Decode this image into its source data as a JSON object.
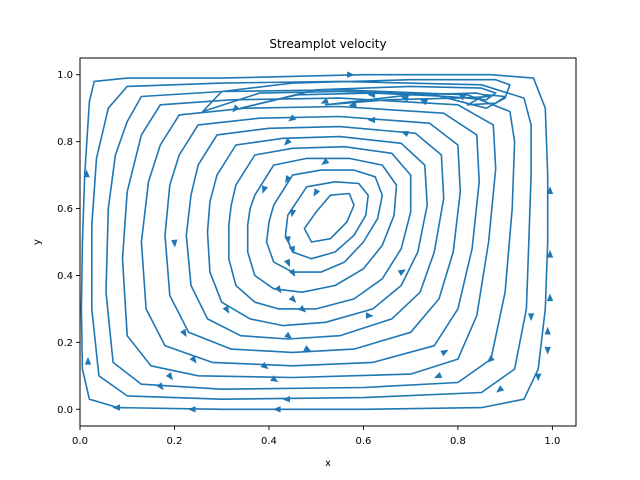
{
  "chart_data": {
    "type": "streamplot",
    "title": "Streamplot velocity",
    "xlabel": "x",
    "ylabel": "y",
    "xlim": [
      0.0,
      1.05
    ],
    "ylim": [
      -0.05,
      1.05
    ],
    "xticks": [
      0.0,
      0.2,
      0.4,
      0.6,
      0.8,
      1.0
    ],
    "yticks": [
      0.0,
      0.2,
      0.4,
      0.6,
      0.8,
      1.0
    ],
    "xtick_labels": [
      "0.0",
      "0.2",
      "0.4",
      "0.6",
      "0.8",
      "1.0"
    ],
    "ytick_labels": [
      "0.0",
      "0.2",
      "0.4",
      "0.6",
      "0.8",
      "1.0"
    ],
    "grid": false,
    "legend": "none",
    "color": "#1f77b4",
    "flow": "clockwise recirculating cavity vortex, center near (0.62, 0.55); rightward flow along top lid, leftward flow near bottom, small secondary vortex near (0.85, 0.92)",
    "streamlines": [
      [
        [
          0.02,
          0.92
        ],
        [
          0.03,
          0.98
        ],
        [
          0.1,
          0.99
        ],
        [
          0.3,
          0.99
        ],
        [
          0.6,
          1.0
        ],
        [
          0.87,
          1.0
        ],
        [
          0.96,
          0.99
        ],
        [
          0.985,
          0.9
        ],
        [
          0.99,
          0.7
        ],
        [
          0.99,
          0.5
        ],
        [
          0.985,
          0.3
        ],
        [
          0.97,
          0.12
        ],
        [
          0.94,
          0.03
        ],
        [
          0.85,
          0.005
        ],
        [
          0.6,
          0.0
        ],
        [
          0.3,
          0.0
        ],
        [
          0.08,
          0.005
        ],
        [
          0.02,
          0.03
        ],
        [
          0.005,
          0.12
        ],
        [
          0.003,
          0.3
        ],
        [
          0.005,
          0.5
        ],
        [
          0.01,
          0.7
        ],
        [
          0.02,
          0.92
        ]
      ],
      [
        [
          0.06,
          0.9
        ],
        [
          0.1,
          0.965
        ],
        [
          0.3,
          0.975
        ],
        [
          0.55,
          0.98
        ],
        [
          0.85,
          0.97
        ],
        [
          0.94,
          0.93
        ],
        [
          0.955,
          0.85
        ],
        [
          0.955,
          0.7
        ],
        [
          0.95,
          0.5
        ],
        [
          0.945,
          0.3
        ],
        [
          0.92,
          0.12
        ],
        [
          0.85,
          0.05
        ],
        [
          0.6,
          0.035
        ],
        [
          0.3,
          0.03
        ],
        [
          0.1,
          0.04
        ],
        [
          0.04,
          0.1
        ],
        [
          0.025,
          0.3
        ],
        [
          0.025,
          0.55
        ],
        [
          0.035,
          0.75
        ],
        [
          0.06,
          0.9
        ]
      ],
      [
        [
          0.1,
          0.86
        ],
        [
          0.13,
          0.935
        ],
        [
          0.3,
          0.95
        ],
        [
          0.55,
          0.955
        ],
        [
          0.82,
          0.94
        ],
        [
          0.91,
          0.89
        ],
        [
          0.92,
          0.8
        ],
        [
          0.915,
          0.6
        ],
        [
          0.9,
          0.35
        ],
        [
          0.87,
          0.15
        ],
        [
          0.8,
          0.08
        ],
        [
          0.6,
          0.065
        ],
        [
          0.3,
          0.06
        ],
        [
          0.13,
          0.075
        ],
        [
          0.07,
          0.14
        ],
        [
          0.055,
          0.35
        ],
        [
          0.06,
          0.6
        ],
        [
          0.075,
          0.76
        ],
        [
          0.1,
          0.86
        ]
      ],
      [
        [
          0.13,
          0.82
        ],
        [
          0.17,
          0.91
        ],
        [
          0.32,
          0.925
        ],
        [
          0.55,
          0.93
        ],
        [
          0.8,
          0.91
        ],
        [
          0.875,
          0.85
        ],
        [
          0.88,
          0.72
        ],
        [
          0.865,
          0.5
        ],
        [
          0.84,
          0.28
        ],
        [
          0.8,
          0.15
        ],
        [
          0.7,
          0.105
        ],
        [
          0.45,
          0.095
        ],
        [
          0.25,
          0.1
        ],
        [
          0.15,
          0.13
        ],
        [
          0.1,
          0.22
        ],
        [
          0.09,
          0.45
        ],
        [
          0.1,
          0.65
        ],
        [
          0.13,
          0.82
        ]
      ],
      [
        [
          0.17,
          0.79
        ],
        [
          0.21,
          0.88
        ],
        [
          0.35,
          0.9
        ],
        [
          0.55,
          0.905
        ],
        [
          0.77,
          0.885
        ],
        [
          0.84,
          0.82
        ],
        [
          0.845,
          0.68
        ],
        [
          0.83,
          0.48
        ],
        [
          0.8,
          0.3
        ],
        [
          0.75,
          0.19
        ],
        [
          0.62,
          0.14
        ],
        [
          0.45,
          0.13
        ],
        [
          0.28,
          0.14
        ],
        [
          0.18,
          0.19
        ],
        [
          0.14,
          0.3
        ],
        [
          0.13,
          0.5
        ],
        [
          0.145,
          0.68
        ],
        [
          0.17,
          0.79
        ]
      ],
      [
        [
          0.21,
          0.76
        ],
        [
          0.25,
          0.85
        ],
        [
          0.38,
          0.87
        ],
        [
          0.55,
          0.875
        ],
        [
          0.74,
          0.855
        ],
        [
          0.8,
          0.79
        ],
        [
          0.805,
          0.65
        ],
        [
          0.79,
          0.47
        ],
        [
          0.76,
          0.33
        ],
        [
          0.7,
          0.23
        ],
        [
          0.58,
          0.18
        ],
        [
          0.45,
          0.17
        ],
        [
          0.32,
          0.18
        ],
        [
          0.23,
          0.23
        ],
        [
          0.19,
          0.34
        ],
        [
          0.18,
          0.52
        ],
        [
          0.19,
          0.67
        ],
        [
          0.21,
          0.76
        ]
      ],
      [
        [
          0.25,
          0.73
        ],
        [
          0.29,
          0.82
        ],
        [
          0.4,
          0.84
        ],
        [
          0.55,
          0.845
        ],
        [
          0.71,
          0.825
        ],
        [
          0.765,
          0.76
        ],
        [
          0.77,
          0.63
        ],
        [
          0.75,
          0.47
        ],
        [
          0.72,
          0.35
        ],
        [
          0.66,
          0.27
        ],
        [
          0.55,
          0.22
        ],
        [
          0.44,
          0.21
        ],
        [
          0.34,
          0.22
        ],
        [
          0.27,
          0.27
        ],
        [
          0.235,
          0.37
        ],
        [
          0.225,
          0.52
        ],
        [
          0.235,
          0.64
        ],
        [
          0.25,
          0.73
        ]
      ],
      [
        [
          0.29,
          0.7
        ],
        [
          0.33,
          0.79
        ],
        [
          0.43,
          0.81
        ],
        [
          0.55,
          0.815
        ],
        [
          0.68,
          0.795
        ],
        [
          0.73,
          0.73
        ],
        [
          0.735,
          0.61
        ],
        [
          0.715,
          0.47
        ],
        [
          0.68,
          0.37
        ],
        [
          0.62,
          0.3
        ],
        [
          0.52,
          0.26
        ],
        [
          0.43,
          0.25
        ],
        [
          0.36,
          0.27
        ],
        [
          0.3,
          0.32
        ],
        [
          0.275,
          0.41
        ],
        [
          0.27,
          0.53
        ],
        [
          0.275,
          0.62
        ],
        [
          0.29,
          0.7
        ]
      ],
      [
        [
          0.33,
          0.67
        ],
        [
          0.37,
          0.76
        ],
        [
          0.45,
          0.78
        ],
        [
          0.56,
          0.785
        ],
        [
          0.66,
          0.765
        ],
        [
          0.7,
          0.7
        ],
        [
          0.7,
          0.59
        ],
        [
          0.68,
          0.48
        ],
        [
          0.64,
          0.39
        ],
        [
          0.58,
          0.33
        ],
        [
          0.5,
          0.3
        ],
        [
          0.42,
          0.3
        ],
        [
          0.37,
          0.32
        ],
        [
          0.33,
          0.37
        ],
        [
          0.315,
          0.45
        ],
        [
          0.315,
          0.55
        ],
        [
          0.32,
          0.61
        ],
        [
          0.33,
          0.67
        ]
      ],
      [
        [
          0.37,
          0.64
        ],
        [
          0.41,
          0.73
        ],
        [
          0.48,
          0.75
        ],
        [
          0.57,
          0.75
        ],
        [
          0.64,
          0.73
        ],
        [
          0.67,
          0.67
        ],
        [
          0.665,
          0.58
        ],
        [
          0.64,
          0.49
        ],
        [
          0.6,
          0.42
        ],
        [
          0.54,
          0.37
        ],
        [
          0.47,
          0.35
        ],
        [
          0.41,
          0.36
        ],
        [
          0.37,
          0.4
        ],
        [
          0.355,
          0.47
        ],
        [
          0.355,
          0.55
        ],
        [
          0.36,
          0.6
        ],
        [
          0.37,
          0.64
        ]
      ],
      [
        [
          0.41,
          0.61
        ],
        [
          0.45,
          0.7
        ],
        [
          0.51,
          0.715
        ],
        [
          0.58,
          0.715
        ],
        [
          0.625,
          0.695
        ],
        [
          0.64,
          0.64
        ],
        [
          0.63,
          0.57
        ],
        [
          0.6,
          0.5
        ],
        [
          0.56,
          0.44
        ],
        [
          0.51,
          0.41
        ],
        [
          0.45,
          0.41
        ],
        [
          0.41,
          0.44
        ],
        [
          0.395,
          0.5
        ],
        [
          0.4,
          0.56
        ],
        [
          0.41,
          0.61
        ]
      ],
      [
        [
          0.44,
          0.58
        ],
        [
          0.48,
          0.665
        ],
        [
          0.54,
          0.68
        ],
        [
          0.59,
          0.675
        ],
        [
          0.61,
          0.64
        ],
        [
          0.605,
          0.58
        ],
        [
          0.58,
          0.52
        ],
        [
          0.54,
          0.47
        ],
        [
          0.49,
          0.45
        ],
        [
          0.45,
          0.47
        ],
        [
          0.435,
          0.52
        ],
        [
          0.44,
          0.58
        ]
      ],
      [
        [
          0.5,
          0.59
        ],
        [
          0.53,
          0.64
        ],
        [
          0.57,
          0.645
        ],
        [
          0.58,
          0.61
        ],
        [
          0.565,
          0.56
        ],
        [
          0.53,
          0.51
        ],
        [
          0.49,
          0.5
        ],
        [
          0.475,
          0.54
        ],
        [
          0.5,
          0.59
        ]
      ],
      [
        [
          0.26,
          0.89
        ],
        [
          0.38,
          0.945
        ],
        [
          0.55,
          0.95
        ],
        [
          0.75,
          0.94
        ],
        [
          0.86,
          0.9
        ],
        [
          0.9,
          0.93
        ],
        [
          0.91,
          0.97
        ],
        [
          0.88,
          0.985
        ],
        [
          0.7,
          0.985
        ],
        [
          0.45,
          0.975
        ],
        [
          0.3,
          0.95
        ],
        [
          0.26,
          0.89
        ]
      ],
      [
        [
          0.34,
          0.9
        ],
        [
          0.46,
          0.94
        ],
        [
          0.62,
          0.945
        ],
        [
          0.78,
          0.935
        ],
        [
          0.86,
          0.925
        ],
        [
          0.88,
          0.945
        ],
        [
          0.85,
          0.96
        ],
        [
          0.7,
          0.965
        ],
        [
          0.5,
          0.955
        ],
        [
          0.34,
          0.9
        ]
      ],
      [
        [
          0.52,
          0.91
        ],
        [
          0.65,
          0.925
        ],
        [
          0.8,
          0.93
        ],
        [
          0.87,
          0.935
        ],
        [
          0.84,
          0.945
        ],
        [
          0.7,
          0.94
        ],
        [
          0.52,
          0.91
        ]
      ],
      [
        [
          0.82,
          0.91
        ],
        [
          0.86,
          0.94
        ],
        [
          0.9,
          0.935
        ],
        [
          0.88,
          0.915
        ],
        [
          0.82,
          0.91
        ]
      ]
    ],
    "arrows": [
      [
        0.57,
        1.0,
        1
      ],
      [
        0.62,
        0.94,
        -1
      ],
      [
        0.58,
        0.91,
        -1
      ],
      [
        0.52,
        0.92,
        -1
      ],
      [
        0.73,
        0.92,
        -1
      ],
      [
        0.69,
        0.93,
        -1
      ],
      [
        0.81,
        0.935,
        -1
      ],
      [
        0.33,
        0.9,
        -1
      ],
      [
        0.45,
        0.87,
        -1
      ],
      [
        0.62,
        0.865,
        -1
      ],
      [
        0.69,
        0.825,
        -1
      ],
      [
        0.44,
        0.8,
        -1
      ],
      [
        0.52,
        0.74,
        -1
      ],
      [
        0.39,
        0.66,
        -1
      ],
      [
        0.44,
        0.69,
        -1
      ],
      [
        0.5,
        0.65,
        -1
      ],
      [
        0.45,
        0.59,
        -1
      ],
      [
        0.44,
        0.51,
        -1
      ],
      [
        0.45,
        0.48,
        -1
      ],
      [
        0.44,
        0.44,
        -1
      ],
      [
        0.45,
        0.41,
        -1
      ],
      [
        0.2,
        0.5,
        -1
      ],
      [
        0.42,
        0.36,
        -1
      ],
      [
        0.45,
        0.33,
        -1
      ],
      [
        0.31,
        0.3,
        -1
      ],
      [
        0.47,
        0.3,
        -1
      ],
      [
        0.61,
        0.28,
        -1
      ],
      [
        0.68,
        0.41,
        -1
      ],
      [
        0.22,
        0.23,
        -1
      ],
      [
        0.44,
        0.22,
        -1
      ],
      [
        0.48,
        0.18,
        -1
      ],
      [
        0.24,
        0.15,
        -1
      ],
      [
        0.19,
        0.1,
        -1
      ],
      [
        0.39,
        0.13,
        -1
      ],
      [
        0.41,
        0.09,
        -1
      ],
      [
        0.17,
        0.07,
        -1
      ],
      [
        0.44,
        0.03,
        -1
      ],
      [
        0.08,
        0.005,
        -1
      ],
      [
        0.24,
        0.0,
        -1
      ],
      [
        0.42,
        0.0,
        -1
      ],
      [
        0.014,
        0.7,
        1
      ],
      [
        0.017,
        0.14,
        1
      ],
      [
        0.77,
        0.17,
        -1
      ],
      [
        0.76,
        0.1,
        1
      ],
      [
        0.87,
        0.15,
        1
      ],
      [
        0.89,
        0.06,
        1
      ],
      [
        0.955,
        0.28,
        -1
      ],
      [
        0.97,
        0.1,
        -1
      ],
      [
        0.995,
        0.65,
        1
      ],
      [
        0.995,
        0.46,
        1
      ],
      [
        0.995,
        0.33,
        1
      ],
      [
        0.99,
        0.23,
        1
      ],
      [
        0.99,
        0.18,
        -1
      ]
    ]
  }
}
